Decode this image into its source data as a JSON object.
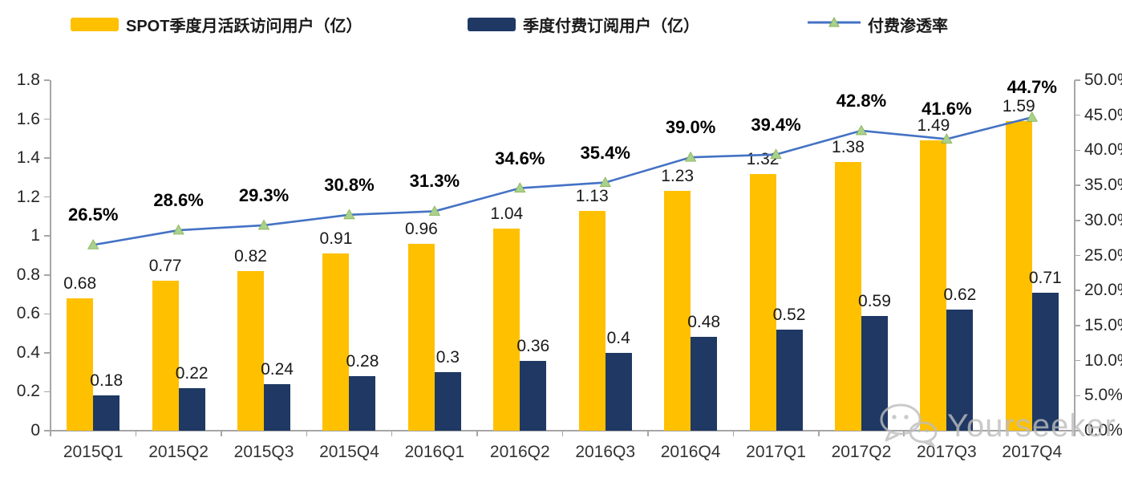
{
  "chart_data": {
    "type": "combo-bar-line",
    "categories": [
      "2015Q1",
      "2015Q2",
      "2015Q3",
      "2015Q4",
      "2016Q1",
      "2016Q2",
      "2016Q3",
      "2016Q4",
      "2017Q1",
      "2017Q2",
      "2017Q3",
      "2017Q4"
    ],
    "series": [
      {
        "name": "SPOT季度月活跃访问用户（亿）",
        "type": "bar",
        "axis": "left",
        "color": "#FFC000",
        "values": [
          0.68,
          0.77,
          0.82,
          0.91,
          0.96,
          1.04,
          1.13,
          1.23,
          1.32,
          1.38,
          1.49,
          1.59
        ],
        "labels": [
          "0.68",
          "0.77",
          "0.82",
          "0.91",
          "0.96",
          "1.04",
          "1.13",
          "1.23",
          "1.32",
          "1.38",
          "1.49",
          "1.59"
        ]
      },
      {
        "name": "季度付费订阅用户（亿）",
        "type": "bar",
        "axis": "left",
        "color": "#1F3864",
        "values": [
          0.18,
          0.22,
          0.24,
          0.28,
          0.3,
          0.36,
          0.4,
          0.48,
          0.52,
          0.59,
          0.62,
          0.71
        ],
        "labels": [
          "0.18",
          "0.22",
          "0.24",
          "0.28",
          "0.3",
          "0.36",
          "0.4",
          "0.48",
          "0.52",
          "0.59",
          "0.62",
          "0.71"
        ]
      },
      {
        "name": "付费渗透率",
        "type": "line",
        "axis": "right",
        "color": "#4472C4",
        "marker": "triangle",
        "marker_color": "#A9D18E",
        "values": [
          26.5,
          28.6,
          29.3,
          30.8,
          31.3,
          34.6,
          35.4,
          39.0,
          39.4,
          42.8,
          41.6,
          44.7
        ],
        "labels": [
          "26.5%",
          "28.6%",
          "29.3%",
          "30.8%",
          "31.3%",
          "34.6%",
          "35.4%",
          "39.0%",
          "39.4%",
          "42.8%",
          "41.6%",
          "44.7%"
        ]
      }
    ],
    "left_axis": {
      "min": 0,
      "max": 1.8,
      "step": 0.2,
      "tick_labels": [
        "0",
        "0.2",
        "0.4",
        "0.6",
        "0.8",
        "1",
        "1.2",
        "1.4",
        "1.6",
        "1.8"
      ]
    },
    "right_axis": {
      "min": 0,
      "max": 50,
      "step": 5,
      "tick_labels": [
        "0.0%",
        "5.0%",
        "10.0%",
        "15.0%",
        "20.0%",
        "25.0%",
        "30.0%",
        "35.0%",
        "40.0%",
        "45.0%",
        "50.0%"
      ]
    },
    "grid": false,
    "legend_position": "top"
  },
  "watermark": {
    "text": "Yourseeker",
    "icon": "wechat-logo"
  }
}
